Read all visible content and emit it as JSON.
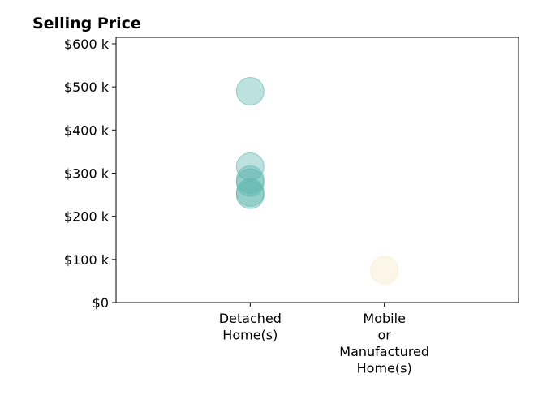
{
  "chart_data": {
    "type": "scatter",
    "title": "Selling Price",
    "xlabel": "",
    "ylabel": "",
    "categories": [
      "Detached\nHome(s)",
      "Mobile\nor\nManufactured\nHome(s)"
    ],
    "ylim": [
      0,
      615000
    ],
    "y_ticks": [
      0,
      100000,
      200000,
      300000,
      400000,
      500000,
      600000
    ],
    "y_tick_labels": [
      "$0",
      "$100 k",
      "$200 k",
      "$300 k",
      "$400 k",
      "$500 k",
      "$600 k"
    ],
    "grid": false,
    "legend": "none",
    "series": [
      {
        "category": "Detached\nHome(s)",
        "color": "#5ab4ac",
        "values": [
          490000,
          315000,
          285000,
          278000,
          255000,
          250000
        ]
      },
      {
        "category": "Mobile\nor\nManufactured\nHome(s)",
        "color": "#f6e8c3",
        "values": [
          75000
        ]
      }
    ]
  }
}
